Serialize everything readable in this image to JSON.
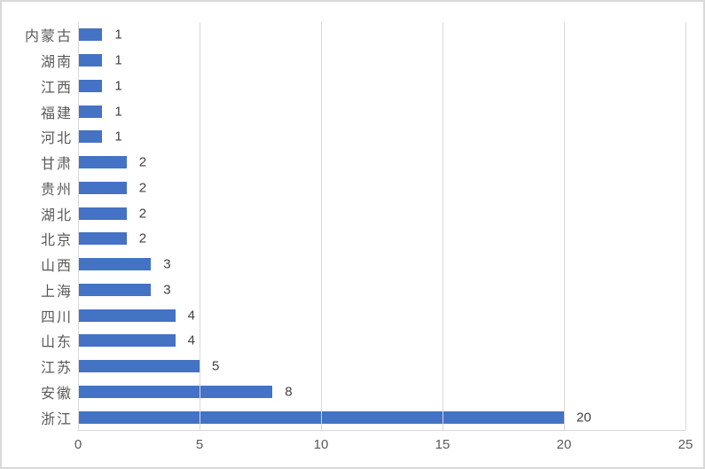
{
  "chart_data": {
    "type": "bar",
    "orientation": "horizontal",
    "title": "",
    "xlabel": "",
    "ylabel": "",
    "category_order": "top-to-bottom",
    "categories": [
      "内蒙古",
      "湖南",
      "江西",
      "福建",
      "河北",
      "甘肃",
      "贵州",
      "湖北",
      "北京",
      "山西",
      "上海",
      "四川",
      "山东",
      "江苏",
      "安徽",
      "浙江"
    ],
    "values": [
      1,
      1,
      1,
      1,
      1,
      2,
      2,
      2,
      2,
      3,
      3,
      4,
      4,
      5,
      8,
      20
    ],
    "x_ticks": [
      0,
      5,
      10,
      15,
      20,
      25
    ],
    "xlim": [
      0,
      25
    ],
    "grid": true,
    "legend_position": "none",
    "data_labels_visible": true,
    "colors": {
      "bar": "#4472C4",
      "gridline": "#D9D9D9",
      "axis_line": "#D9D9D9",
      "tick_label": "#595959",
      "category_label": "#595959",
      "value_label": "#404040",
      "background": "#FFFFFF",
      "border": "#D9D9D9"
    }
  }
}
